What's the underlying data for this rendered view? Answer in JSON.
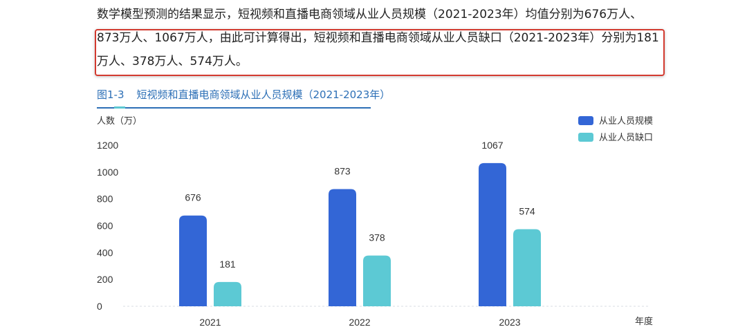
{
  "paragraph": {
    "text": "数学模型预测的结果显示，短视频和直播电商领域从业人员规模（2021-2023年）均值分别为676万人、873万人、1067万人，由此可计算得出，短视频和直播电商领域从业人员缺口（2021-2023年）分别为181万人、378万人、574万人。"
  },
  "figure": {
    "number": "图1-3",
    "title": "短视频和直播电商领域从业人员规模（2021-2023年）"
  },
  "colors": {
    "series1": "#3366d6",
    "series2": "#5cc9d4",
    "highlight": "#d33a2f",
    "caption": "#2c6fb6"
  },
  "chart_data": {
    "type": "bar",
    "categories": [
      "2021",
      "2022",
      "2023"
    ],
    "series": [
      {
        "name": "从业人员规模",
        "values": [
          676,
          873,
          1067
        ]
      },
      {
        "name": "从业人员缺口",
        "values": [
          181,
          378,
          574
        ]
      }
    ],
    "title": "短视频和直播电商领域从业人员规模（2021-2023年）",
    "xlabel": "年度",
    "ylabel": "人数（万）",
    "ylim": [
      0,
      1200
    ],
    "yticks": [
      0,
      200,
      400,
      600,
      800,
      1000,
      1200
    ],
    "data_labels": true,
    "grid": false,
    "legend_position": "top-right"
  }
}
